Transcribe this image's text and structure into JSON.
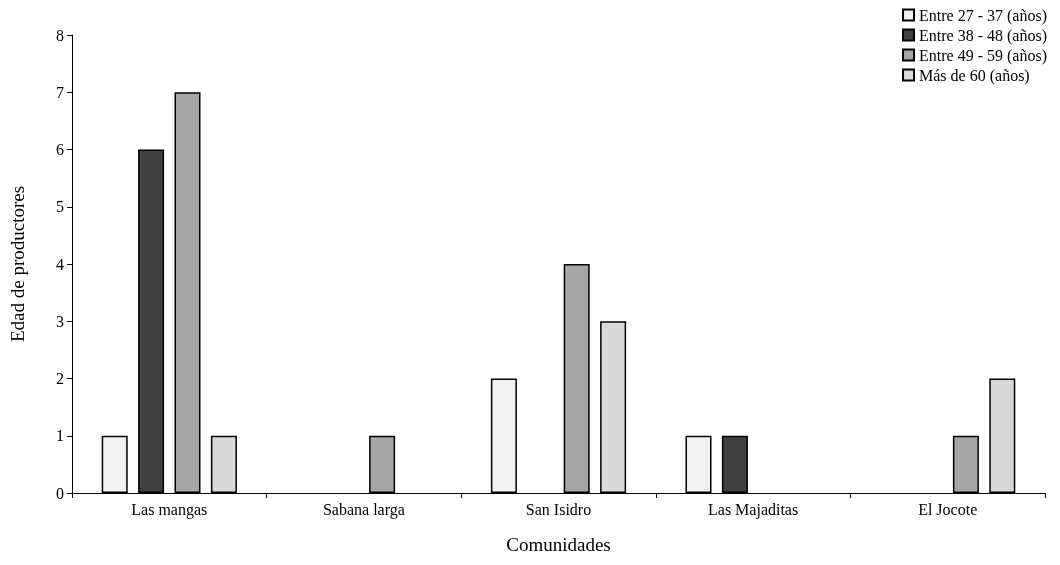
{
  "chart_data": {
    "type": "bar",
    "xlabel": "Comunidades",
    "ylabel": "Edad de productores",
    "categories": [
      "Las mangas",
      "Sabana larga",
      "San Isidro",
      "Las Majaditas",
      "El Jocote"
    ],
    "series": [
      {
        "name": "Entre 27 - 37 (años)",
        "color": "#f2f2f2",
        "values": [
          1,
          0,
          2,
          1,
          0
        ]
      },
      {
        "name": "Entre 38 - 48 (años)",
        "color": "#404040",
        "values": [
          6,
          0,
          0,
          1,
          0
        ]
      },
      {
        "name": "Entre 49 - 59 (años)",
        "color": "#a6a6a6",
        "values": [
          7,
          1,
          4,
          0,
          1
        ]
      },
      {
        "name": "Más de 60 (años)",
        "color": "#d9d9d9",
        "values": [
          1,
          0,
          3,
          0,
          2
        ]
      }
    ],
    "ylim": [
      0,
      8
    ],
    "yticks": [
      0,
      1,
      2,
      3,
      4,
      5,
      6,
      7,
      8
    ],
    "grid": false,
    "legend": "top right"
  }
}
